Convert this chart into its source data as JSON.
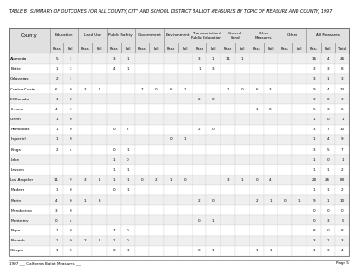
{
  "title": "TABLE B  SUMMARY OF OUTCOMES FOR ALL COUNTY, CITY AND SCHOOL DISTRICT BALLOT MEASURES BY TOPIC OF MEASURE AND COUNTY, 1997",
  "group_names": [
    "Education",
    "Land Use",
    "Public Safety",
    "Government",
    "Environment",
    "Transportation/\nPublic Education",
    "General\nBond",
    "Other\nMeasures",
    "Other",
    "All Measures"
  ],
  "group_sizes": [
    2,
    2,
    2,
    2,
    2,
    2,
    2,
    2,
    2,
    3
  ],
  "subheaders": [
    "Pass",
    "Fail",
    "Pass",
    "Fail",
    "Pass",
    "Fail",
    "Pass",
    "Fail",
    "Pass",
    "Fail",
    "Pass",
    "Fail",
    "Pass",
    "Fail",
    "Pass",
    "Fail",
    "Pass",
    "Fail",
    "Pass",
    "Fail",
    "Total"
  ],
  "rows": [
    [
      "Alameda",
      5,
      1,
      "",
      "",
      3,
      1,
      "",
      "",
      "",
      "",
      3,
      1,
      11,
      1,
      "",
      "",
      "",
      "",
      16,
      4,
      26
    ],
    [
      "Butte",
      1,
      3,
      "",
      "",
      4,
      1,
      "",
      "",
      "",
      "",
      1,
      3,
      "",
      "",
      "",
      "",
      "",
      "",
      3,
      3,
      8
    ],
    [
      "Calaveras",
      2,
      1,
      "",
      "",
      "",
      "",
      "",
      "",
      "",
      "",
      "",
      "",
      "",
      "",
      "",
      "",
      "",
      "",
      3,
      1,
      3
    ],
    [
      "Contra Costa",
      6,
      0,
      3,
      1,
      "",
      "",
      7,
      0,
      6,
      1,
      "",
      "",
      1,
      0,
      6,
      3,
      "",
      "",
      9,
      4,
      13
    ],
    [
      "El Dorado",
      1,
      0,
      "",
      "",
      "",
      "",
      "",
      "",
      "",
      "",
      2,
      0,
      "",
      "",
      "",
      "",
      "",
      "",
      3,
      0,
      3
    ],
    [
      "Fresno",
      4,
      3,
      "",
      "",
      "",
      "",
      "",
      "",
      "",
      "",
      "",
      "",
      "",
      "",
      1,
      0,
      "",
      "",
      5,
      3,
      6
    ],
    [
      "Glenn",
      1,
      0,
      "",
      "",
      "",
      "",
      "",
      "",
      "",
      "",
      "",
      "",
      "",
      "",
      "",
      "",
      "",
      "",
      1,
      0,
      1
    ],
    [
      "Humboldt",
      1,
      0,
      "",
      "",
      0,
      2,
      "",
      "",
      "",
      "",
      2,
      0,
      "",
      "",
      "",
      "",
      "",
      "",
      3,
      7,
      10
    ],
    [
      "Imperial",
      1,
      0,
      "",
      "",
      "",
      "",
      "",
      "",
      0,
      1,
      "",
      "",
      "",
      "",
      "",
      "",
      "",
      "",
      1,
      4,
      9
    ],
    [
      "Kings",
      2,
      4,
      "",
      "",
      0,
      1,
      "",
      "",
      "",
      "",
      "",
      "",
      "",
      "",
      "",
      "",
      "",
      "",
      3,
      5,
      7
    ],
    [
      "Lake",
      "",
      "",
      "",
      "",
      1,
      0,
      "",
      "",
      "",
      "",
      "",
      "",
      "",
      "",
      "",
      "",
      "",
      "",
      1,
      0,
      1
    ],
    [
      "Lassen",
      "",
      "",
      "",
      "",
      1,
      1,
      "",
      "",
      "",
      "",
      "",
      "",
      "",
      "",
      "",
      "",
      "",
      "",
      1,
      1,
      2
    ],
    [
      "Los Angeles",
      11,
      9,
      3,
      1,
      1,
      1,
      0,
      2,
      1,
      0,
      "",
      "",
      3,
      1,
      0,
      4,
      "",
      "",
      20,
      26,
      80
    ],
    [
      "Madera",
      1,
      0,
      "",
      "",
      0,
      1,
      "",
      "",
      "",
      "",
      "",
      "",
      "",
      "",
      "",
      "",
      "",
      "",
      1,
      1,
      2
    ],
    [
      "Marin",
      4,
      0,
      1,
      3,
      "",
      "",
      "",
      "",
      "",
      "",
      2,
      0,
      "",
      "",
      2,
      1,
      0,
      1,
      9,
      1,
      10
    ],
    [
      "Mendocino",
      3,
      0,
      "",
      "",
      "",
      "",
      "",
      "",
      "",
      "",
      "",
      "",
      "",
      "",
      "",
      "",
      "",
      "",
      0,
      0,
      0
    ],
    [
      "Monterey",
      0,
      4,
      "",
      "",
      "",
      "",
      "",
      "",
      "",
      "",
      0,
      1,
      "",
      "",
      "",
      "",
      "",
      "",
      0,
      3,
      5
    ],
    [
      "Napa",
      1,
      0,
      "",
      "",
      7,
      0,
      "",
      "",
      "",
      "",
      "",
      "",
      "",
      "",
      "",
      "",
      "",
      "",
      8,
      0,
      8
    ],
    [
      "Nevada",
      1,
      0,
      2,
      1,
      1,
      0,
      "",
      "",
      "",
      "",
      "",
      "",
      "",
      "",
      "",
      "",
      "",
      "",
      3,
      1,
      3
    ],
    [
      "Obispo",
      1,
      0,
      "",
      "",
      0,
      1,
      "",
      "",
      "",
      "",
      0,
      1,
      "",
      "",
      1,
      1,
      "",
      "",
      1,
      3,
      4
    ]
  ],
  "footer_left": "1997 ___ California Ballot Measures ___",
  "footer_right": "Page 5",
  "bg_color": "#ffffff",
  "text_color": "#000000",
  "header_bg": "#e0e0e0",
  "alt_row_bg": "#efefef"
}
